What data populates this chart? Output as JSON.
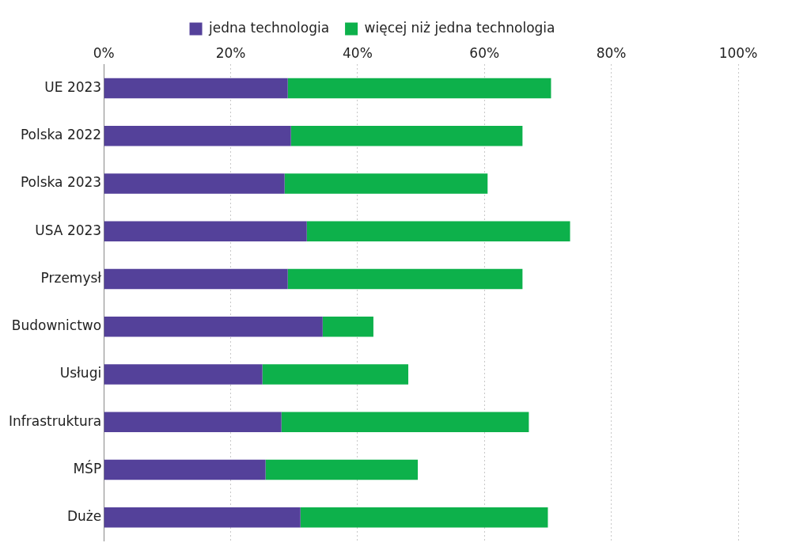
{
  "chart_data": {
    "type": "bar",
    "orientation": "horizontal",
    "stacked": true,
    "categories": [
      "UE 2023",
      "Polska 2022",
      "Polska 2023",
      "USA 2023",
      "Przemysł",
      "Budownictwo",
      "Usługi",
      "Infrastruktura",
      "MŚP",
      "Duże"
    ],
    "series": [
      {
        "name": "jedna technologia",
        "color": "#54419a",
        "values": [
          29,
          29.5,
          28.5,
          32,
          29,
          34.5,
          25,
          28,
          25.5,
          31
        ]
      },
      {
        "name": "więcej niż jedna technologia",
        "color": "#0db14b",
        "values": [
          41.5,
          36.5,
          32,
          41.5,
          37,
          8,
          23,
          39,
          24,
          39
        ]
      }
    ],
    "xlim": [
      0,
      100
    ],
    "xticks": [
      {
        "value": 0,
        "label": "0%"
      },
      {
        "value": 20,
        "label": "20%"
      },
      {
        "value": 40,
        "label": "40%"
      },
      {
        "value": 60,
        "label": "60%"
      },
      {
        "value": 80,
        "label": "80%"
      },
      {
        "value": 100,
        "label": "100%"
      }
    ],
    "grid": "x",
    "legend": "top"
  }
}
